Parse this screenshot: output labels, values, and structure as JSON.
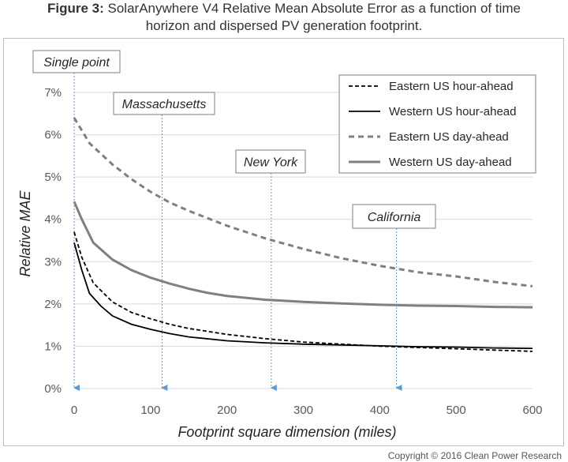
{
  "figure": {
    "label": "Figure 3:",
    "title_line1": " SolarAnywhere V4 Relative Mean Absolute Error as a function of time",
    "title_line2": "horizon and dispersed PV generation footprint."
  },
  "copyright": "Copyright © 2016 Clean Power Research",
  "chart_data": {
    "type": "line",
    "xlabel": "Footprint square dimension (miles)",
    "ylabel": "Relative MAE",
    "xlim": [
      0,
      600
    ],
    "ylim": [
      0,
      7
    ],
    "xticks": [
      0,
      100,
      200,
      300,
      400,
      500,
      600
    ],
    "yticks": [
      0,
      1,
      2,
      3,
      4,
      5,
      6,
      7
    ],
    "ytick_suffix": "%",
    "grid": "horizontal",
    "legend_position": "top-right",
    "series": [
      {
        "name": "Eastern US hour-ahead",
        "color": "#000000",
        "dash": "dashed",
        "points": [
          [
            0,
            3.7
          ],
          [
            10,
            3.1
          ],
          [
            25,
            2.5
          ],
          [
            50,
            2.05
          ],
          [
            75,
            1.8
          ],
          [
            100,
            1.65
          ],
          [
            125,
            1.52
          ],
          [
            150,
            1.42
          ],
          [
            200,
            1.28
          ],
          [
            250,
            1.18
          ],
          [
            300,
            1.1
          ],
          [
            350,
            1.05
          ],
          [
            400,
            1.0
          ],
          [
            450,
            0.97
          ],
          [
            500,
            0.94
          ],
          [
            550,
            0.91
          ],
          [
            600,
            0.88
          ]
        ]
      },
      {
        "name": "Western US hour-ahead",
        "color": "#000000",
        "dash": "solid",
        "points": [
          [
            0,
            3.45
          ],
          [
            10,
            2.8
          ],
          [
            20,
            2.25
          ],
          [
            35,
            1.95
          ],
          [
            50,
            1.72
          ],
          [
            75,
            1.52
          ],
          [
            100,
            1.4
          ],
          [
            125,
            1.3
          ],
          [
            150,
            1.22
          ],
          [
            200,
            1.13
          ],
          [
            250,
            1.08
          ],
          [
            300,
            1.05
          ],
          [
            350,
            1.03
          ],
          [
            400,
            1.01
          ],
          [
            450,
            0.99
          ],
          [
            500,
            0.98
          ],
          [
            550,
            0.96
          ],
          [
            600,
            0.95
          ]
        ]
      },
      {
        "name": "Eastern US day-ahead",
        "color": "#808080",
        "dash": "dashed",
        "points": [
          [
            0,
            6.4
          ],
          [
            20,
            5.8
          ],
          [
            50,
            5.3
          ],
          [
            75,
            4.95
          ],
          [
            100,
            4.65
          ],
          [
            125,
            4.4
          ],
          [
            150,
            4.2
          ],
          [
            200,
            3.85
          ],
          [
            250,
            3.55
          ],
          [
            300,
            3.3
          ],
          [
            350,
            3.08
          ],
          [
            400,
            2.9
          ],
          [
            450,
            2.75
          ],
          [
            500,
            2.65
          ],
          [
            550,
            2.52
          ],
          [
            600,
            2.42
          ]
        ]
      },
      {
        "name": "Western US day-ahead",
        "color": "#808080",
        "dash": "solid",
        "points": [
          [
            0,
            4.42
          ],
          [
            10,
            4.0
          ],
          [
            25,
            3.45
          ],
          [
            50,
            3.05
          ],
          [
            75,
            2.8
          ],
          [
            100,
            2.62
          ],
          [
            125,
            2.48
          ],
          [
            150,
            2.36
          ],
          [
            175,
            2.26
          ],
          [
            200,
            2.19
          ],
          [
            250,
            2.1
          ],
          [
            300,
            2.05
          ],
          [
            350,
            2.01
          ],
          [
            400,
            1.98
          ],
          [
            450,
            1.96
          ],
          [
            500,
            1.95
          ],
          [
            550,
            1.93
          ],
          [
            600,
            1.92
          ]
        ]
      }
    ],
    "annotations": [
      {
        "label": "Single point",
        "x": 0
      },
      {
        "label": "Massachusetts",
        "x": 115
      },
      {
        "label": "New York",
        "x": 258
      },
      {
        "label": "California",
        "x": 422
      }
    ]
  }
}
